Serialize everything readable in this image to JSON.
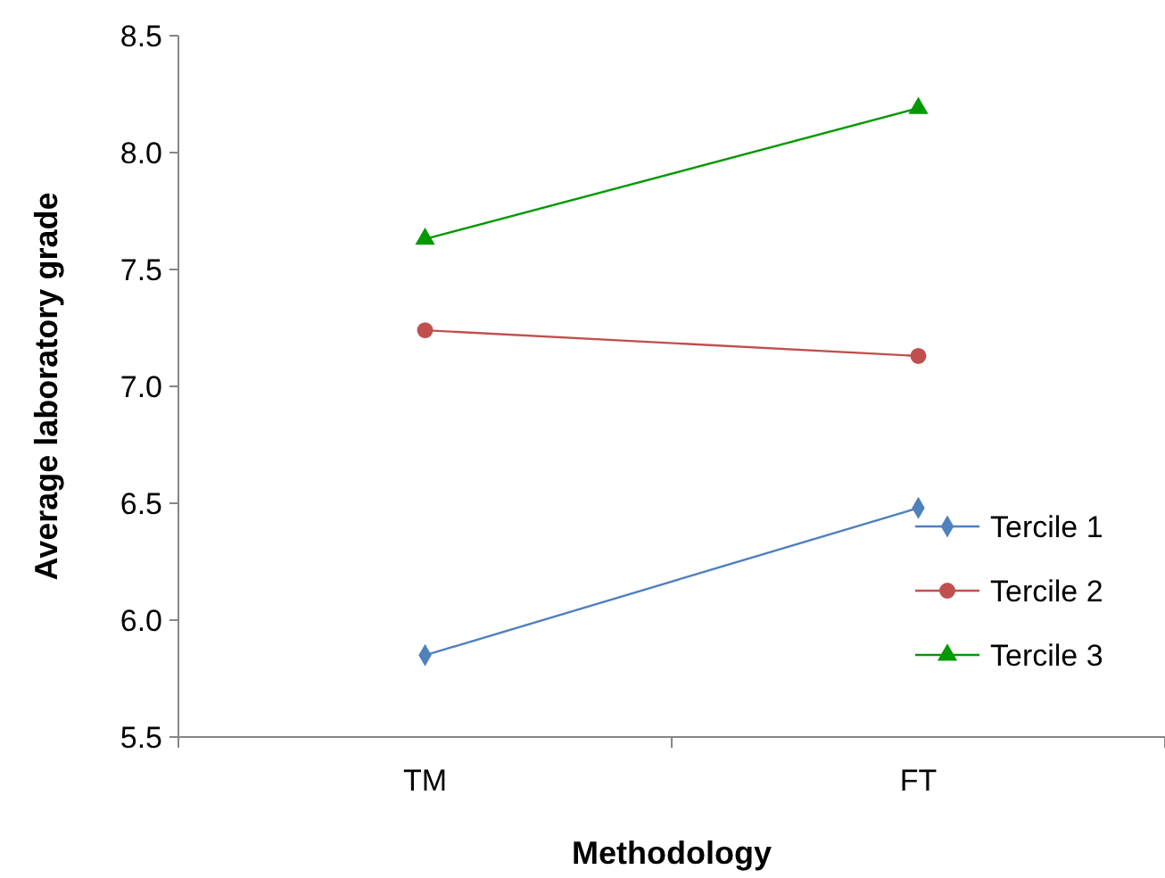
{
  "chart_data": {
    "type": "line",
    "xlabel": "Methodology",
    "ylabel": "Average laboratory grade",
    "categories": [
      "TM",
      "FT"
    ],
    "ylim": [
      5.5,
      8.5
    ],
    "yticks": [
      5.5,
      {
        "value": 6,
        "label": "6.0"
      },
      6.5,
      {
        "value": 7,
        "label": "7.0"
      },
      7.5,
      {
        "value": 8,
        "label": "8.0"
      },
      8.5
    ],
    "grid": false,
    "legend": "bottom right",
    "series": [
      {
        "name": "Tercile 1",
        "color": "#4f81bd",
        "marker": "diamond",
        "values": [
          5.85,
          6.48
        ]
      },
      {
        "name": "Tercile 2",
        "color": "#c0504d",
        "marker": "circle",
        "values": [
          7.24,
          7.13
        ]
      },
      {
        "name": "Tercile 3",
        "color": "#009900",
        "marker": "triangle",
        "values": [
          7.63,
          8.19
        ]
      }
    ]
  }
}
